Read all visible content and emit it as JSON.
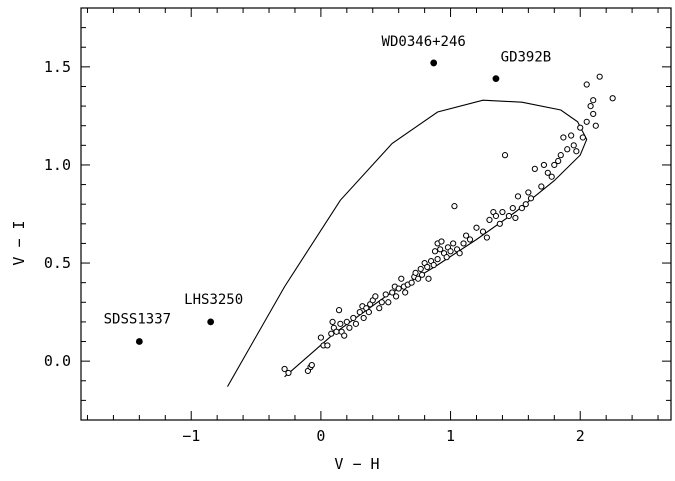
{
  "chart_data": {
    "type": "scatter",
    "xlabel": "V − H",
    "ylabel": "V − I",
    "xlim": [
      -1.85,
      2.7
    ],
    "ylim": [
      -0.3,
      1.8
    ],
    "xticks": [
      -1,
      0,
      1,
      2
    ],
    "xtick_labels": [
      "−1",
      "0",
      "1",
      "2"
    ],
    "yticks": [
      0.0,
      0.5,
      1.0,
      1.5
    ],
    "ytick_labels": [
      "0.0",
      "0.5",
      "1.0",
      "1.5"
    ],
    "grid": false,
    "series": [
      {
        "marker": "filled-circle",
        "points": [
          {
            "label": "SDSS1337",
            "x": -1.4,
            "y": 0.1
          },
          {
            "label": "LHS3250",
            "x": -0.85,
            "y": 0.2
          },
          {
            "label": "WD0346+246",
            "x": 0.87,
            "y": 1.52
          },
          {
            "label": "GD392B",
            "x": 1.35,
            "y": 1.44
          }
        ]
      },
      {
        "marker": "open-circle",
        "points": [
          [
            -0.28,
            -0.04
          ],
          [
            -0.25,
            -0.06
          ],
          [
            -0.1,
            -0.05
          ],
          [
            -0.08,
            -0.03
          ],
          [
            -0.07,
            -0.02
          ],
          [
            0.0,
            0.12
          ],
          [
            0.02,
            0.08
          ],
          [
            0.05,
            0.08
          ],
          [
            0.08,
            0.14
          ],
          [
            0.09,
            0.2
          ],
          [
            0.1,
            0.17
          ],
          [
            0.12,
            0.15
          ],
          [
            0.14,
            0.26
          ],
          [
            0.15,
            0.19
          ],
          [
            0.16,
            0.15
          ],
          [
            0.18,
            0.13
          ],
          [
            0.2,
            0.2
          ],
          [
            0.22,
            0.17
          ],
          [
            0.25,
            0.22
          ],
          [
            0.27,
            0.19
          ],
          [
            0.3,
            0.25
          ],
          [
            0.32,
            0.28
          ],
          [
            0.33,
            0.22
          ],
          [
            0.35,
            0.27
          ],
          [
            0.37,
            0.25
          ],
          [
            0.38,
            0.29
          ],
          [
            0.4,
            0.31
          ],
          [
            0.42,
            0.33
          ],
          [
            0.45,
            0.27
          ],
          [
            0.47,
            0.3
          ],
          [
            0.5,
            0.34
          ],
          [
            0.52,
            0.3
          ],
          [
            0.55,
            0.35
          ],
          [
            0.57,
            0.38
          ],
          [
            0.58,
            0.33
          ],
          [
            0.6,
            0.37
          ],
          [
            0.62,
            0.42
          ],
          [
            0.64,
            0.38
          ],
          [
            0.65,
            0.35
          ],
          [
            0.67,
            0.39
          ],
          [
            0.7,
            0.4
          ],
          [
            0.72,
            0.43
          ],
          [
            0.73,
            0.45
          ],
          [
            0.75,
            0.42
          ],
          [
            0.77,
            0.47
          ],
          [
            0.78,
            0.44
          ],
          [
            0.8,
            0.5
          ],
          [
            0.82,
            0.48
          ],
          [
            0.83,
            0.42
          ],
          [
            0.85,
            0.51
          ],
          [
            0.87,
            0.49
          ],
          [
            0.88,
            0.56
          ],
          [
            0.9,
            0.6
          ],
          [
            0.9,
            0.52
          ],
          [
            0.92,
            0.57
          ],
          [
            0.93,
            0.61
          ],
          [
            0.95,
            0.55
          ],
          [
            0.97,
            0.53
          ],
          [
            0.98,
            0.58
          ],
          [
            1.0,
            0.56
          ],
          [
            1.02,
            0.6
          ],
          [
            1.03,
            0.79
          ],
          [
            1.05,
            0.57
          ],
          [
            1.07,
            0.55
          ],
          [
            1.1,
            0.6
          ],
          [
            1.12,
            0.64
          ],
          [
            1.15,
            0.62
          ],
          [
            1.2,
            0.68
          ],
          [
            1.25,
            0.66
          ],
          [
            1.28,
            0.63
          ],
          [
            1.3,
            0.72
          ],
          [
            1.33,
            0.76
          ],
          [
            1.35,
            0.74
          ],
          [
            1.38,
            0.7
          ],
          [
            1.4,
            0.76
          ],
          [
            1.42,
            1.05
          ],
          [
            1.45,
            0.74
          ],
          [
            1.48,
            0.78
          ],
          [
            1.5,
            0.73
          ],
          [
            1.52,
            0.84
          ],
          [
            1.55,
            0.78
          ],
          [
            1.58,
            0.8
          ],
          [
            1.6,
            0.86
          ],
          [
            1.62,
            0.83
          ],
          [
            1.65,
            0.98
          ],
          [
            1.7,
            0.89
          ],
          [
            1.72,
            1.0
          ],
          [
            1.75,
            0.96
          ],
          [
            1.78,
            0.94
          ],
          [
            1.8,
            1.0
          ],
          [
            1.83,
            1.02
          ],
          [
            1.85,
            1.05
          ],
          [
            1.87,
            1.14
          ],
          [
            1.9,
            1.08
          ],
          [
            1.93,
            1.15
          ],
          [
            1.95,
            1.1
          ],
          [
            1.97,
            1.07
          ],
          [
            2.0,
            1.19
          ],
          [
            2.02,
            1.14
          ],
          [
            2.05,
            1.22
          ],
          [
            2.08,
            1.3
          ],
          [
            2.1,
            1.26
          ],
          [
            2.12,
            1.2
          ],
          [
            2.15,
            1.45
          ],
          [
            2.05,
            1.41
          ],
          [
            2.25,
            1.34
          ],
          [
            2.1,
            1.33
          ]
        ]
      }
    ],
    "lines": [
      {
        "points": [
          [
            -0.72,
            -0.13
          ],
          [
            -0.28,
            0.38
          ],
          [
            0.15,
            0.82
          ],
          [
            0.55,
            1.11
          ],
          [
            0.9,
            1.27
          ],
          [
            1.25,
            1.33
          ],
          [
            1.55,
            1.32
          ],
          [
            1.85,
            1.28
          ],
          [
            1.98,
            1.22
          ],
          [
            2.05,
            1.13
          ],
          [
            2.0,
            1.05
          ],
          [
            1.8,
            0.92
          ],
          [
            1.5,
            0.76
          ],
          [
            1.2,
            0.62
          ],
          [
            0.9,
            0.49
          ],
          [
            0.5,
            0.33
          ],
          [
            0.1,
            0.14
          ],
          [
            -0.28,
            -0.08
          ]
        ]
      }
    ]
  }
}
